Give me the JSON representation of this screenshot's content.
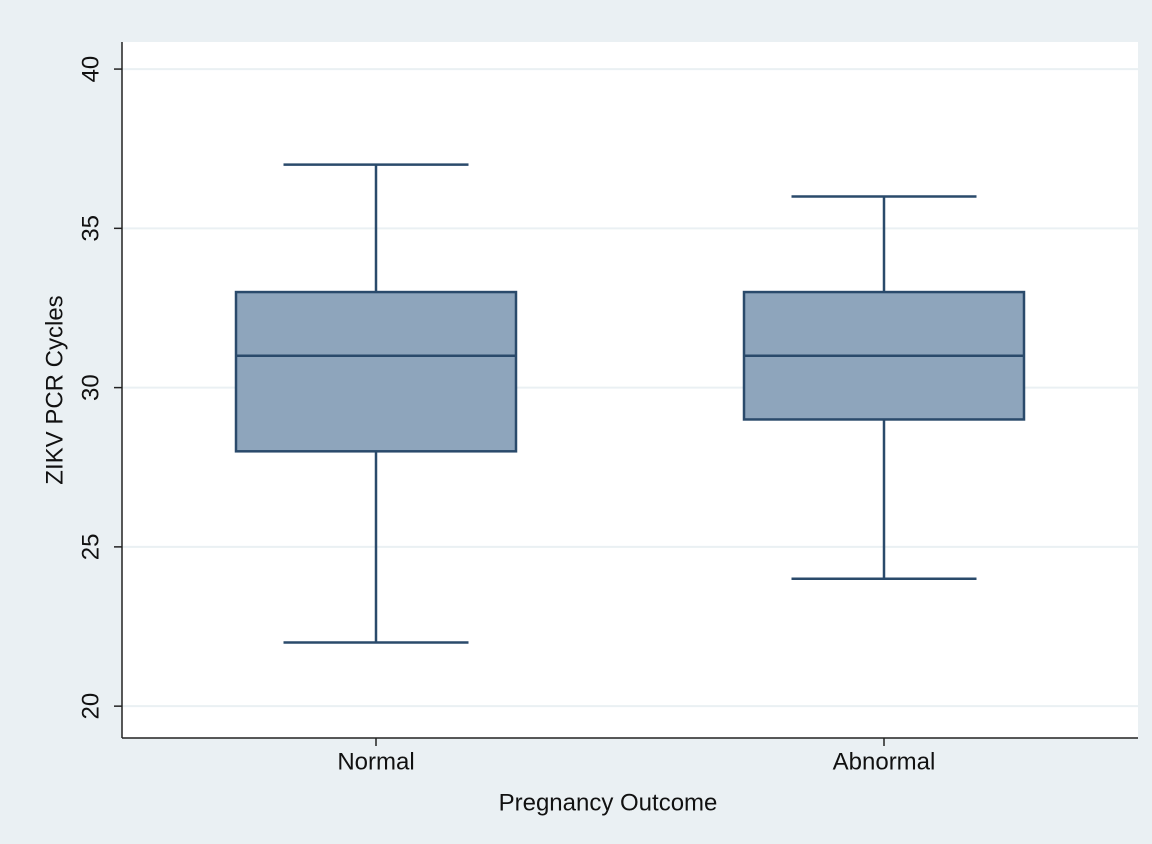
{
  "chart_data": {
    "type": "box",
    "x_label": "Pregnancy Outcome",
    "y_label": "ZIKV PCR Cycles",
    "categories": [
      "Normal",
      "Abnormal"
    ],
    "stats": [
      {
        "min": 22,
        "q1": 28,
        "median": 31,
        "q3": 33,
        "max": 37
      },
      {
        "min": 24,
        "q1": 29,
        "median": 31,
        "q3": 33,
        "max": 36
      }
    ],
    "color": "#8ea5bc",
    "line_color": "#2a4a6b",
    "ylim": [
      19,
      40.85
    ],
    "yticks": [
      20,
      25,
      30,
      35,
      40
    ],
    "grid": true
  }
}
